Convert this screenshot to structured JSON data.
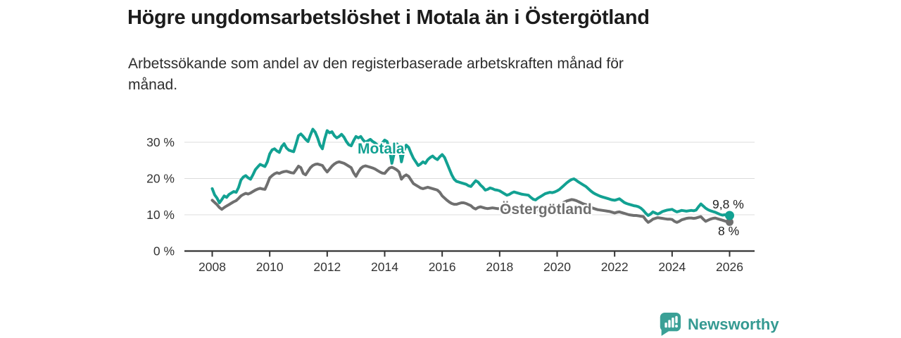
{
  "chart_data": {
    "type": "line",
    "title": "Högre ungdomsarbetslöshet i Motala än i Östergötland",
    "subtitle_lines": [
      "Arbetssökande som andel av den registerbaserade arbetskraften månad för",
      "månad."
    ],
    "grid": "horizontal",
    "legend_position": "on-chart-labels",
    "xlim": [
      2008,
      2026.9
    ],
    "ylim": [
      0,
      35
    ],
    "x_ticks": [
      {
        "v": 2008,
        "label": "2008"
      },
      {
        "v": 2010,
        "label": "2010"
      },
      {
        "v": 2012,
        "label": "2012"
      },
      {
        "v": 2014,
        "label": "2014"
      },
      {
        "v": 2016,
        "label": "2016"
      },
      {
        "v": 2018,
        "label": "2018"
      },
      {
        "v": 2020,
        "label": "2020"
      },
      {
        "v": 2022,
        "label": "2022"
      },
      {
        "v": 2024,
        "label": "2024"
      },
      {
        "v": 2026,
        "label": "2026"
      }
    ],
    "y_ticks": [
      {
        "v": 0,
        "label": "0 %"
      },
      {
        "v": 10,
        "label": "10 %"
      },
      {
        "v": 20,
        "label": "20 %"
      },
      {
        "v": 30,
        "label": "30 %"
      }
    ],
    "series": [
      {
        "name": "Östergötland",
        "slug": "ostergotland",
        "color": "#6f6f6f",
        "end_label": "8 %",
        "end_value": 8.0,
        "start_year": 2008,
        "points_per_year": 12,
        "values": [
          14.0,
          13.4,
          12.8,
          12.0,
          11.5,
          12.0,
          12.4,
          12.8,
          13.2,
          13.6,
          13.9,
          14.5,
          15.2,
          15.6,
          15.9,
          15.7,
          16.0,
          16.4,
          16.8,
          17.1,
          17.3,
          17.1,
          17.0,
          18.5,
          20.2,
          20.8,
          21.3,
          21.6,
          21.4,
          21.7,
          21.9,
          22.0,
          21.8,
          21.6,
          21.5,
          22.4,
          23.4,
          23.0,
          21.4,
          21.0,
          22.0,
          23.0,
          23.6,
          23.9,
          24.0,
          23.8,
          23.6,
          22.6,
          21.8,
          22.6,
          23.4,
          24.0,
          24.4,
          24.6,
          24.4,
          24.2,
          23.8,
          23.4,
          23.0,
          21.6,
          20.6,
          21.8,
          22.8,
          23.3,
          23.5,
          23.3,
          23.1,
          22.9,
          22.6,
          22.2,
          21.8,
          21.5,
          21.4,
          22.2,
          22.9,
          23.1,
          22.8,
          22.4,
          21.8,
          19.8,
          20.6,
          21.0,
          20.6,
          19.6,
          18.6,
          18.2,
          17.8,
          17.4,
          17.2,
          17.4,
          17.6,
          17.4,
          17.2,
          17.0,
          16.8,
          16.2,
          15.2,
          14.6,
          14.0,
          13.5,
          13.1,
          12.9,
          12.9,
          13.1,
          13.3,
          13.3,
          13.1,
          12.8,
          12.5,
          11.9,
          11.6,
          12.0,
          12.2,
          12.0,
          11.8,
          11.7,
          11.8,
          11.9,
          11.8,
          11.7,
          11.7,
          11.5,
          11.3,
          11.2,
          11.4,
          11.6,
          11.8,
          11.9,
          11.9,
          11.8,
          11.8,
          11.9,
          12.0,
          11.7,
          11.4,
          11.3,
          11.5,
          11.7,
          11.9,
          12.0,
          12.1,
          12.2,
          12.2,
          12.3,
          12.5,
          12.8,
          13.1,
          13.5,
          13.8,
          14.0,
          14.2,
          14.1,
          13.9,
          13.6,
          13.3,
          13.0,
          12.8,
          12.4,
          12.1,
          11.8,
          11.6,
          11.4,
          11.3,
          11.2,
          11.1,
          11.0,
          10.9,
          10.7,
          10.5,
          10.7,
          10.8,
          10.6,
          10.4,
          10.2,
          10.0,
          9.9,
          9.8,
          9.8,
          9.7,
          9.6,
          9.5,
          8.6,
          7.9,
          8.3,
          8.8,
          9.0,
          9.2,
          9.1,
          9.0,
          8.9,
          8.8,
          8.8,
          8.7,
          8.2,
          7.9,
          8.2,
          8.6,
          8.8,
          9.0,
          9.1,
          9.1,
          9.0,
          9.1,
          9.3,
          9.5,
          8.8,
          8.2,
          8.5,
          8.8,
          9.0,
          9.1,
          8.9,
          8.7,
          8.5,
          8.3,
          8.1,
          8.0
        ]
      },
      {
        "name": "Motala",
        "slug": "motala",
        "color": "#12a192",
        "end_label": "9,8 %",
        "end_value": 9.8,
        "start_year": 2008,
        "points_per_year": 12,
        "values": [
          17.2,
          15.5,
          14.6,
          13.3,
          14.2,
          15.2,
          14.8,
          15.6,
          16.0,
          16.4,
          16.2,
          17.5,
          19.6,
          20.4,
          20.8,
          20.2,
          19.8,
          21.0,
          22.4,
          23.2,
          23.9,
          23.6,
          23.3,
          24.6,
          26.8,
          27.9,
          28.2,
          27.6,
          27.2,
          28.8,
          29.6,
          28.4,
          27.8,
          27.6,
          27.4,
          29.5,
          31.8,
          32.3,
          31.6,
          30.8,
          30.2,
          32.0,
          33.6,
          32.8,
          31.2,
          29.2,
          28.2,
          31.0,
          33.2,
          32.6,
          32.9,
          31.8,
          31.2,
          31.6,
          32.2,
          31.4,
          30.2,
          29.3,
          29.0,
          30.4,
          31.6,
          31.2,
          31.6,
          30.6,
          30.0,
          30.4,
          30.8,
          30.2,
          29.8,
          29.2,
          29.0,
          29.8,
          30.6,
          30.2,
          28.0,
          24.2,
          27.0,
          29.6,
          29.0,
          24.6,
          27.5,
          29.2,
          28.6,
          27.0,
          25.6,
          24.6,
          23.6,
          24.0,
          24.6,
          24.2,
          25.2,
          25.8,
          26.2,
          25.6,
          25.2,
          26.0,
          26.6,
          25.8,
          24.2,
          22.6,
          21.0,
          19.8,
          19.2,
          19.0,
          18.8,
          18.6,
          18.4,
          18.0,
          17.8,
          18.6,
          19.4,
          19.0,
          18.2,
          17.6,
          16.8,
          17.0,
          17.4,
          17.2,
          16.9,
          16.8,
          16.6,
          16.2,
          15.8,
          15.4,
          15.6,
          16.0,
          16.3,
          16.1,
          15.9,
          15.7,
          15.6,
          15.5,
          15.4,
          14.8,
          14.3,
          14.1,
          14.6,
          15.0,
          15.4,
          15.8,
          16.0,
          16.2,
          16.1,
          16.3,
          16.6,
          17.0,
          17.6,
          18.2,
          18.8,
          19.3,
          19.7,
          19.9,
          19.5,
          19.0,
          18.6,
          18.2,
          17.8,
          17.2,
          16.6,
          16.1,
          15.7,
          15.4,
          15.1,
          14.9,
          14.7,
          14.5,
          14.3,
          14.1,
          14.0,
          14.2,
          14.4,
          13.9,
          13.4,
          13.1,
          12.9,
          12.7,
          12.5,
          12.4,
          12.2,
          11.8,
          11.2,
          10.4,
          9.8,
          10.2,
          10.8,
          10.5,
          10.2,
          10.5,
          10.9,
          11.1,
          11.3,
          11.4,
          11.5,
          11.1,
          10.8,
          11.0,
          11.2,
          11.1,
          11.0,
          11.1,
          11.2,
          11.1,
          11.3,
          12.2,
          13.0,
          12.4,
          11.8,
          11.4,
          11.1,
          10.9,
          10.7,
          10.4,
          10.1,
          9.9,
          10.0,
          9.9,
          9.8
        ]
      }
    ],
    "axis_color": "#333333",
    "grid_color": "#dcdcdc"
  },
  "footer": {
    "brand": "Newsworthy",
    "brand_color": "#359a92",
    "logo_icon": "bar-chart-speech-bubble-icon"
  }
}
